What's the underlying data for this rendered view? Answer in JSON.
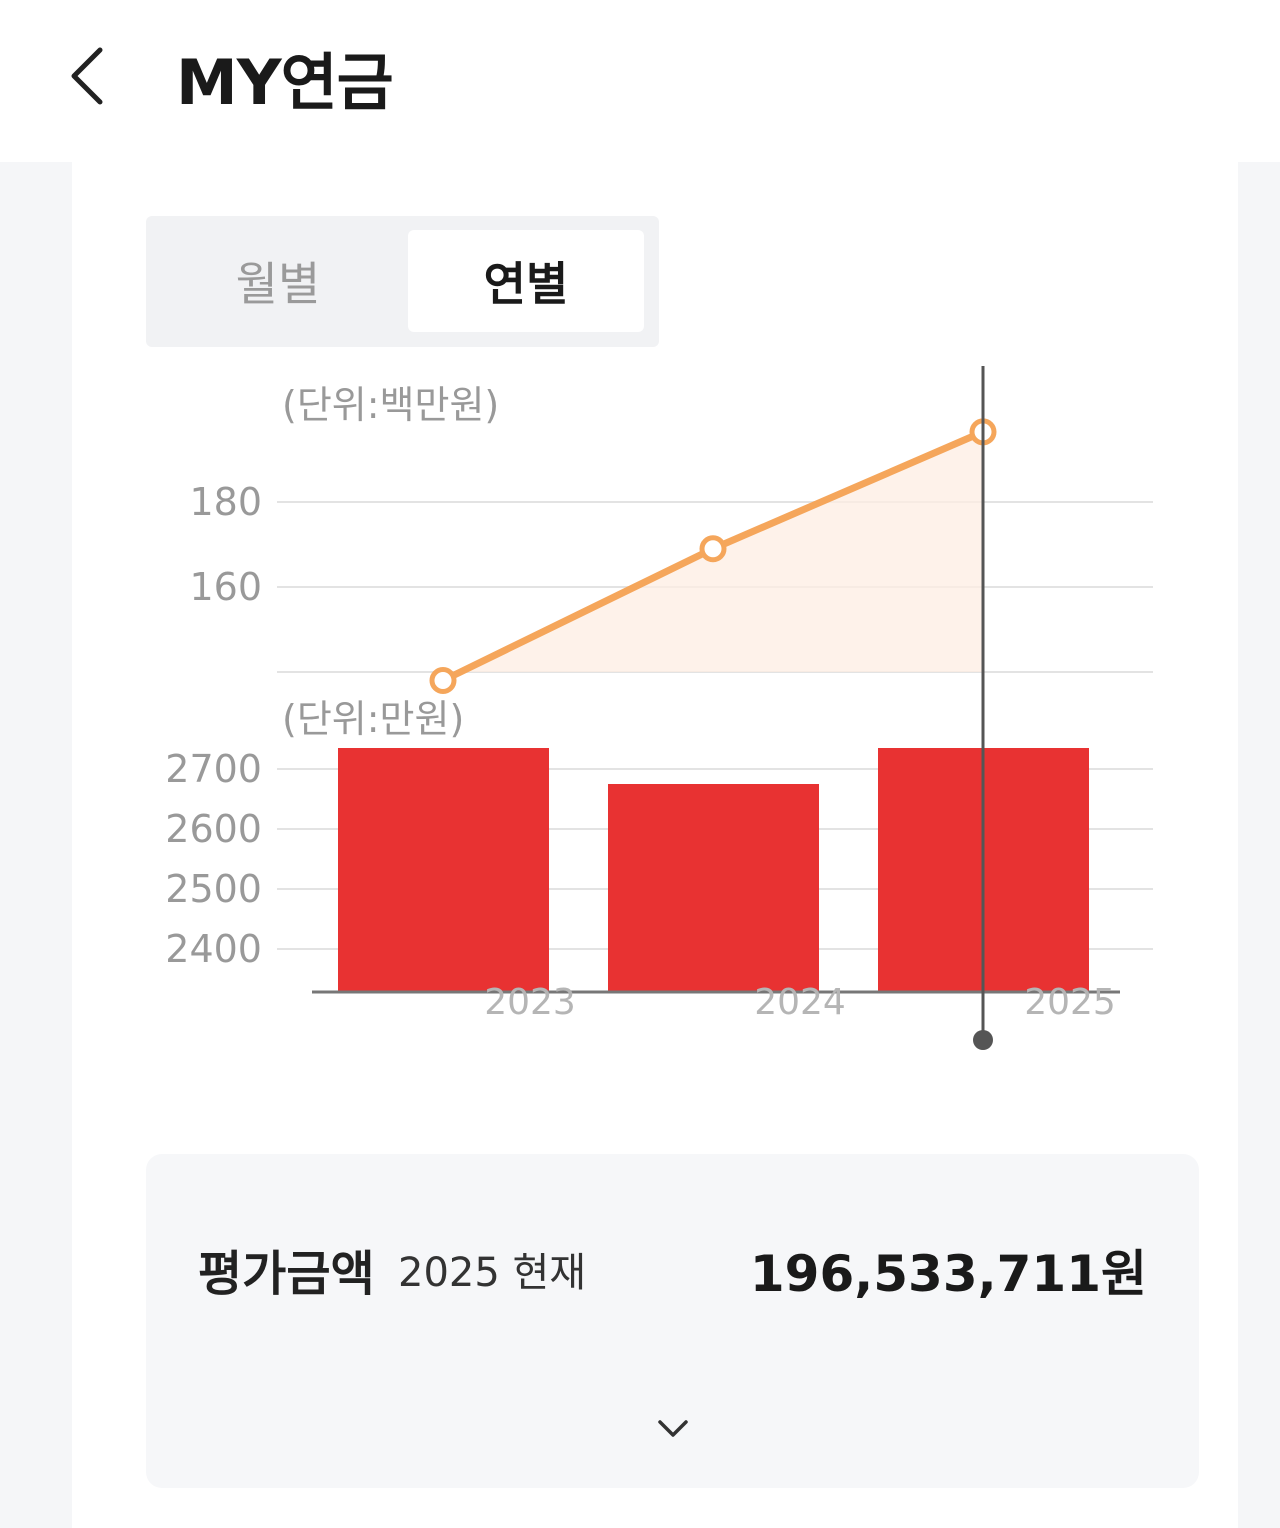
{
  "header": {
    "title": "MY연금",
    "back_icon": "chevron-left-icon"
  },
  "tabs": {
    "monthly": "월별",
    "yearly": "연별",
    "selected": "yearly"
  },
  "chart_data": [
    {
      "type": "line",
      "unit_label": "(단위:백만원)",
      "x": [
        "2023",
        "2024",
        "2025"
      ],
      "values": [
        138,
        169,
        196.5
      ],
      "yticks": [
        160,
        180
      ],
      "ylim": [
        140,
        200
      ],
      "color": "#f5a65b",
      "fill": "#fdeee3",
      "grid": true
    },
    {
      "type": "bar",
      "unit_label": "(단위:만원)",
      "categories": [
        "2023",
        "2024",
        "2025"
      ],
      "values": [
        2735,
        2675,
        2735
      ],
      "yticks": [
        2400,
        2500,
        2600,
        2700
      ],
      "ylim": [
        2330,
        2700
      ],
      "color": "#e83232",
      "grid": true,
      "selected_index": 2
    }
  ],
  "summary": {
    "label": "평가금액",
    "sub_label": "2025 현재",
    "value": "196,533,711원",
    "expand_icon": "chevron-down-icon"
  }
}
